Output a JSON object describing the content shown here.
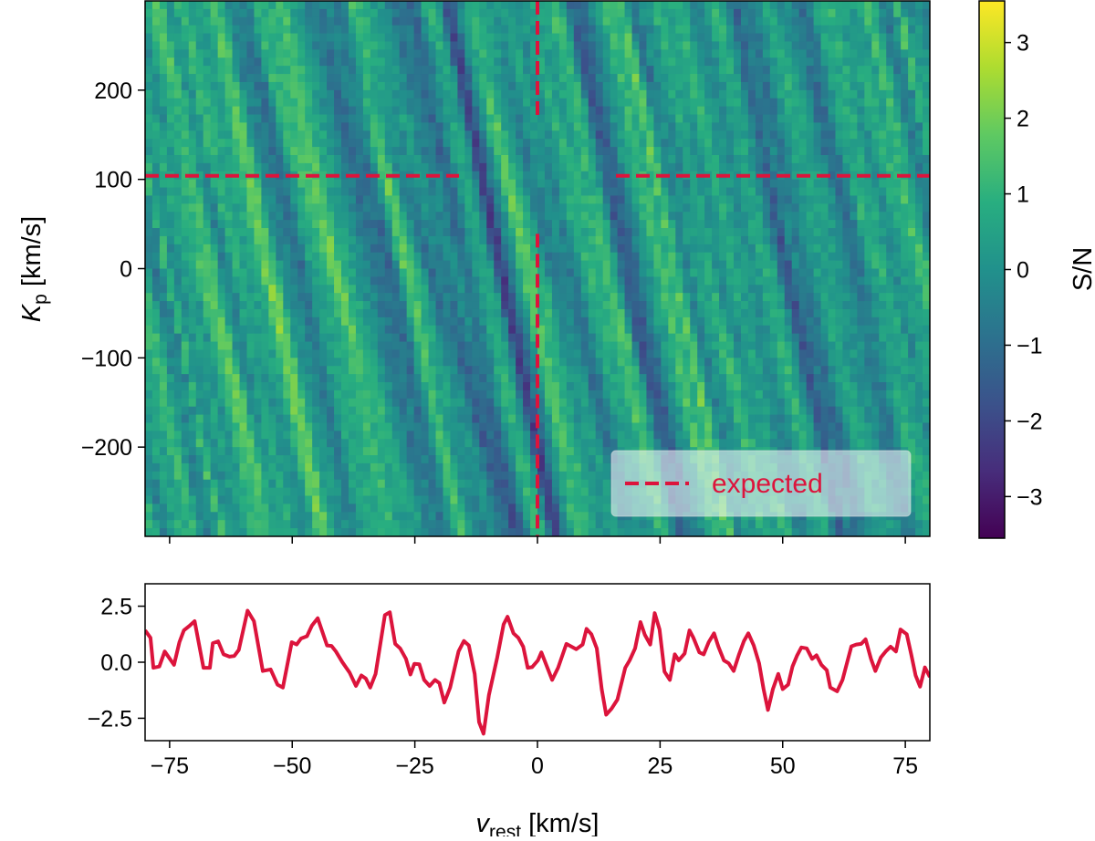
{
  "chart_data": [
    {
      "type": "heatmap",
      "xlim": [
        -80,
        80
      ],
      "ylim": [
        -300,
        300
      ],
      "zlim": [
        -3.55,
        3.55
      ],
      "colormap": "viridis",
      "x_ticks": [
        -75,
        -50,
        -25,
        0,
        25,
        50,
        75
      ],
      "y_ticks": [
        200,
        100,
        0,
        -100,
        -200
      ],
      "y_tick_labels": [
        "200",
        "100",
        "0",
        "−100",
        "−200"
      ],
      "ylabel": {
        "main": "K",
        "sub": "p",
        "unit": " [km/s]"
      },
      "colorbar": {
        "label": "S/N",
        "ticks": [
          3,
          2,
          1,
          0,
          -1,
          -2,
          -3
        ],
        "tick_labels": [
          "3",
          "2",
          "1",
          "0",
          "−1",
          "−2",
          "−3"
        ]
      },
      "expected": {
        "vrest": 0,
        "kp": 104,
        "gap_v": 16,
        "gap_kp": 65,
        "color": "#dc143c"
      },
      "legend": {
        "label": "expected",
        "placement": "lower-right"
      }
    },
    {
      "type": "line",
      "xlim": [
        -80,
        80
      ],
      "ylim": [
        -3.5,
        3.5
      ],
      "color": "#dc143c",
      "x_ticks": [
        -75,
        -50,
        -25,
        0,
        25,
        50,
        75
      ],
      "x_tick_labels": [
        "−75",
        "−50",
        "−25",
        "0",
        "25",
        "50",
        "75"
      ],
      "y_ticks": [
        2.5,
        0.0,
        -2.5
      ],
      "y_tick_labels": [
        "2.5",
        "0.0",
        "−2.5"
      ],
      "xlabel": {
        "main": "v",
        "sub": "rest",
        "unit": " [km/s]"
      },
      "x": [
        -80,
        -78.9,
        -78.3,
        -77.1,
        -76.0,
        -74.1,
        -73.0,
        -72.1,
        -70.9,
        -69.9,
        -68.1,
        -66.8,
        -66.2,
        -65.1,
        -64.0,
        -62.8,
        -61.8,
        -60.9,
        -59.1,
        -57.8,
        -56.0,
        -54.4,
        -53.0,
        -51.9,
        -50.1,
        -49.1,
        -48.2,
        -47.0,
        -46.0,
        -44.8,
        -42.9,
        -42.0,
        -41.1,
        -39.8,
        -38.3,
        -37.0,
        -35.9,
        -35.0,
        -34.1,
        -33.0,
        -31.1,
        -30.1,
        -29.0,
        -28.0,
        -26.8,
        -25.9,
        -25.1,
        -24.1,
        -23.1,
        -22.0,
        -20.9,
        -20.0,
        -19.0,
        -17.8,
        -16.1,
        -15.0,
        -14.0,
        -12.8,
        -11.9,
        -11.0,
        -9.9,
        -8.2,
        -6.9,
        -6.1,
        -4.9,
        -3.9,
        -2.9,
        -2.0,
        -1.1,
        0.1,
        0.8,
        3.0,
        4.2,
        5.9,
        7.9,
        9.2,
        10.0,
        11.0,
        12.1,
        13.1,
        14.0,
        15.1,
        16.3,
        17.9,
        18.8,
        19.9,
        21.0,
        21.9,
        23.0,
        23.9,
        24.9,
        25.9,
        27.0,
        28.0,
        28.8,
        30.0,
        31.0,
        31.8,
        33.0,
        33.9,
        34.9,
        36.0,
        36.9,
        38.0,
        39.0,
        40.0,
        41.1,
        42.1,
        43.0,
        44.1,
        45.2,
        46.1,
        47.0,
        48.0,
        49.1,
        50.0,
        51.1,
        52.0,
        52.9,
        53.8,
        54.9,
        56.0,
        56.9,
        57.9,
        59.0,
        59.7,
        61.1,
        62.2,
        64.0,
        65.0,
        66.0,
        66.9,
        68.0,
        68.9,
        70.0,
        71.0,
        72.0,
        73.1,
        74.0,
        75.3,
        76.2,
        77.1,
        78.0,
        79.0,
        80
      ],
      "y": [
        1.42,
        1.09,
        -0.25,
        -0.19,
        0.48,
        -0.12,
        0.89,
        1.42,
        1.63,
        1.83,
        -0.25,
        -0.25,
        0.85,
        0.93,
        0.35,
        0.25,
        0.28,
        0.55,
        2.3,
        1.83,
        -0.39,
        -0.32,
        -1.0,
        -1.13,
        0.89,
        0.79,
        1.06,
        1.16,
        1.63,
        1.96,
        0.75,
        0.73,
        0.48,
        0.01,
        -0.46,
        -1.06,
        -0.59,
        -0.73,
        -1.13,
        -0.52,
        2.1,
        2.23,
        0.82,
        0.62,
        0.15,
        -0.55,
        -0.07,
        -0.09,
        -0.79,
        -1.06,
        -0.79,
        -0.93,
        -1.8,
        -1.13,
        0.48,
        0.95,
        0.75,
        -0.52,
        -2.67,
        -3.19,
        -1.46,
        0.21,
        1.69,
        2.03,
        1.29,
        1.09,
        0.69,
        -0.25,
        -0.22,
        0.08,
        0.44,
        -0.79,
        -0.25,
        0.82,
        0.58,
        0.79,
        1.49,
        1.25,
        0.62,
        -1.2,
        -2.34,
        -2.07,
        -1.67,
        -0.25,
        0.08,
        0.62,
        1.79,
        1.22,
        0.79,
        2.19,
        1.46,
        -0.42,
        -0.79,
        0.35,
        0.08,
        0.39,
        1.42,
        1.09,
        0.44,
        0.35,
        0.89,
        1.29,
        0.69,
        0.08,
        -0.05,
        -0.39,
        0.35,
        0.95,
        1.29,
        0.75,
        -0.05,
        -1.2,
        -2.13,
        -1.2,
        -0.52,
        -1.2,
        -1.0,
        -0.19,
        0.28,
        0.66,
        0.62,
        0.15,
        0.31,
        -0.12,
        -0.36,
        -1.13,
        -1.3,
        -0.79,
        0.71,
        0.79,
        0.82,
        1.02,
        0.15,
        -0.39,
        0.21,
        0.48,
        0.69,
        0.48,
        1.46,
        1.25,
        0.35,
        -0.59,
        -1.09,
        -0.23,
        -0.66
      ]
    }
  ]
}
